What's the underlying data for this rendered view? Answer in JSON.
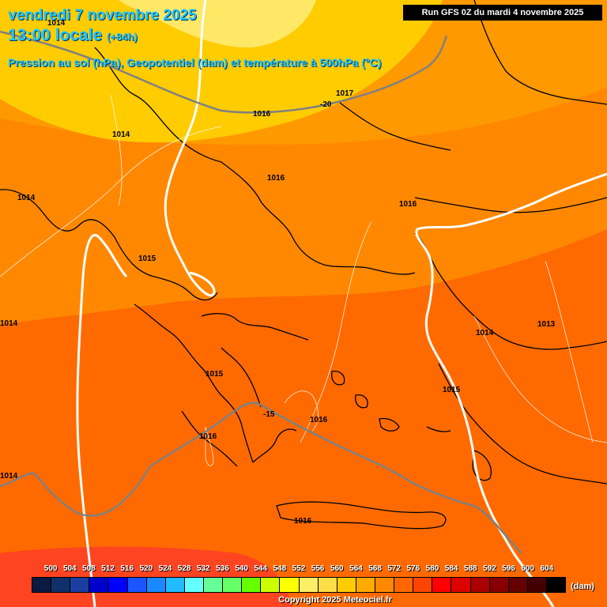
{
  "header": {
    "date_line": "vendredi 7 novembre 2025",
    "time_line": "13:00 locale",
    "lead_time": "(+84h)",
    "field_description": "Pression au sol (hPa), Geopotentiel (dam) et température à 500hPa (°C)",
    "run_info": "Run GFS 0Z du mardi 4 novembre 2025"
  },
  "colors": {
    "band_lightyellow": "#ffe866",
    "band_yellow": "#ffcc00",
    "band_lightorange": "#ff9900",
    "band_orange": "#ff8800",
    "band_darkorange": "#ff6a00",
    "band_red": "#ff4422",
    "isobar": "#ffffff",
    "isotherm": "#808080",
    "coastline": "#000000",
    "label_text": "#1ec8ff"
  },
  "isobar_labels": [
    "1014",
    "1014",
    "1014",
    "1015",
    "1016",
    "1016",
    "1017",
    "1016",
    "1014",
    "1013",
    "1015",
    "1015",
    "1016",
    "1016",
    "1016",
    "1014",
    "1014"
  ],
  "isotherm_labels": [
    "-20",
    "-15"
  ],
  "legend": {
    "values": [
      "500",
      "504",
      "508",
      "512",
      "516",
      "520",
      "524",
      "528",
      "532",
      "536",
      "540",
      "544",
      "548",
      "552",
      "556",
      "560",
      "564",
      "568",
      "572",
      "576",
      "580",
      "584",
      "588",
      "592",
      "596",
      "600",
      "604"
    ],
    "colors": [
      "#0a1a40",
      "#10306a",
      "#1a3fa0",
      "#0000cc",
      "#0000ff",
      "#1a55ff",
      "#1a88ff",
      "#22bbff",
      "#66ffff",
      "#66ff99",
      "#66ff66",
      "#66ff00",
      "#ccff00",
      "#ffff00",
      "#ffee66",
      "#ffdd44",
      "#ffcc00",
      "#ffaa00",
      "#ff8800",
      "#ff6600",
      "#ff4400",
      "#ff0000",
      "#dd0000",
      "#aa0000",
      "#880000",
      "#660000",
      "#440000",
      "#000000"
    ],
    "unit": "(dam)"
  },
  "copyright": "Copyright 2025 Meteociel.fr"
}
